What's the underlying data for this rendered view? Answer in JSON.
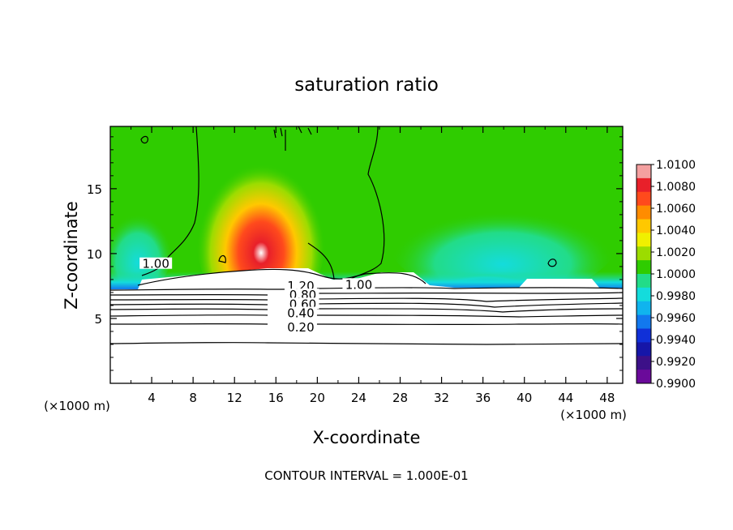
{
  "chart_data": {
    "type": "heatmap",
    "title": "saturation ratio",
    "xlabel": "X-coordinate",
    "ylabel": "Z-coordinate",
    "x_unit_label": "(×1000 m)",
    "footer": "CONTOUR INTERVAL = 1.000E-01",
    "xlim": [
      0,
      49.5
    ],
    "ylim": [
      0,
      19.8
    ],
    "x_ticks": [
      4,
      8,
      12,
      16,
      20,
      24,
      28,
      32,
      36,
      40,
      44,
      48
    ],
    "y_ticks": [
      5,
      10,
      15
    ],
    "colorbar": {
      "min": 0.99,
      "max": 1.01,
      "tick_labels": [
        "1.0100",
        "1.0080",
        "1.0060",
        "1.0040",
        "1.0020",
        "1.0000",
        "0.9980",
        "0.9960",
        "0.9940",
        "0.9920",
        "0.9900"
      ],
      "colors": [
        "#f4a0a0",
        "#e8202a",
        "#ff4a1c",
        "#ff8c00",
        "#ffc800",
        "#f0f000",
        "#9cdc00",
        "#2fcc00",
        "#22dc88",
        "#14dcdc",
        "#10b4ee",
        "#1278ee",
        "#1030d8",
        "#1616a8",
        "#3c1088",
        "#6a0a9a"
      ]
    },
    "contour_labels": [
      {
        "text": "1.00",
        "x": 4.4,
        "y": 9.2
      },
      {
        "text": "1.20",
        "x": 18.4,
        "y": 7.5
      },
      {
        "text": "0.80",
        "x": 18.6,
        "y": 6.8
      },
      {
        "text": "0.60",
        "x": 18.6,
        "y": 6.1
      },
      {
        "text": "0.40",
        "x": 18.4,
        "y": 5.4
      },
      {
        "text": "0.20",
        "x": 18.4,
        "y": 4.3
      },
      {
        "text": "1.00",
        "x": 24.0,
        "y": 7.6
      }
    ]
  }
}
